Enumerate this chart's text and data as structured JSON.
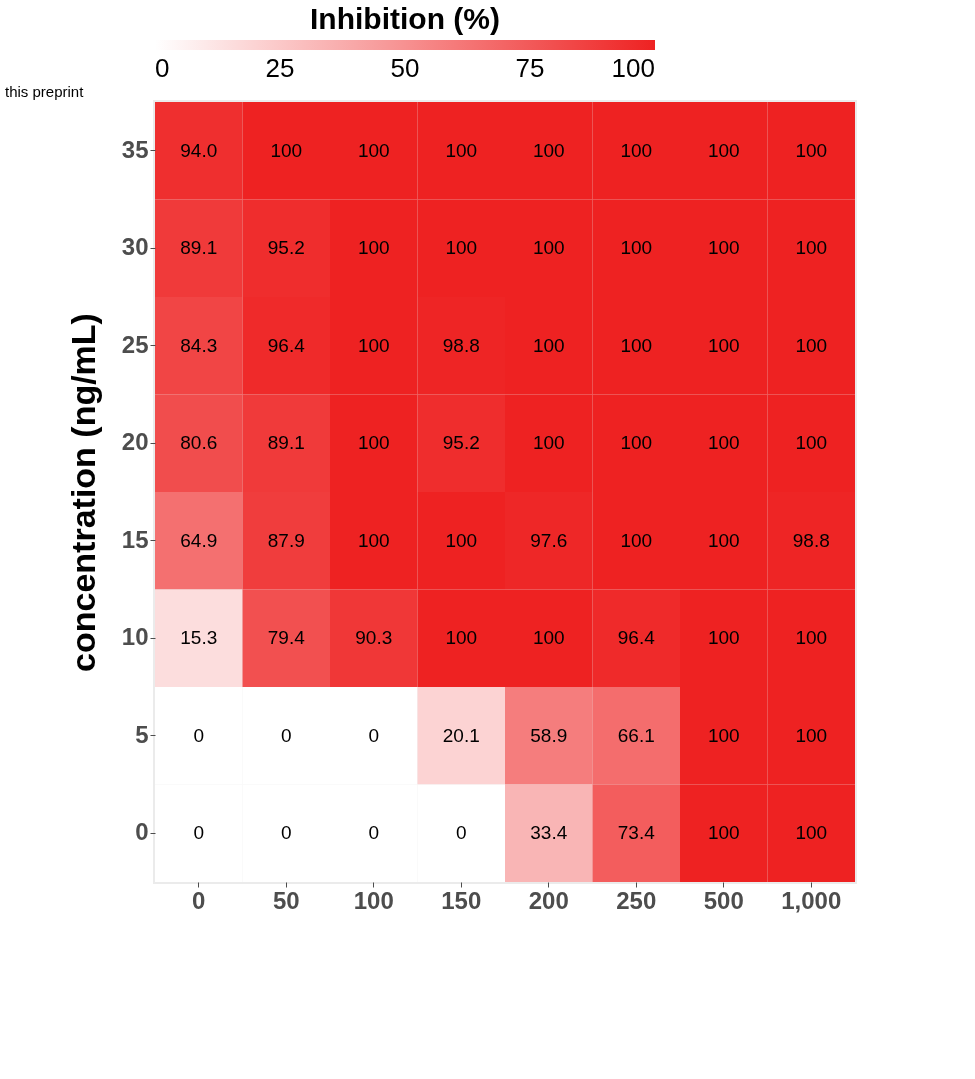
{
  "chart_data": {
    "type": "heatmap",
    "clabel": "Inhibition (%)",
    "ylabel": "concentration (ng/mL)",
    "categories": [
      "0",
      "50",
      "100",
      "150",
      "200",
      "250",
      "500",
      "1,000"
    ],
    "y_categories": [
      "35",
      "30",
      "25",
      "20",
      "15",
      "10",
      "5",
      "0"
    ],
    "cells": [
      [
        94.0,
        100,
        100,
        100,
        100,
        100,
        100,
        100
      ],
      [
        89.1,
        95.2,
        100,
        100,
        100,
        100,
        100,
        100
      ],
      [
        84.3,
        96.4,
        100,
        98.8,
        100,
        100,
        100,
        100
      ],
      [
        80.6,
        89.1,
        100,
        95.2,
        100,
        100,
        100,
        100
      ],
      [
        64.9,
        87.9,
        100,
        100,
        97.6,
        100,
        100,
        98.8
      ],
      [
        15.3,
        79.4,
        90.3,
        100,
        100,
        96.4,
        100,
        100
      ],
      [
        0,
        0,
        0,
        20.1,
        58.9,
        66.1,
        100,
        100
      ],
      [
        0,
        0,
        0,
        0,
        33.4,
        73.4,
        100,
        100
      ]
    ],
    "cell_labels": [
      [
        "94.0",
        "100",
        "100",
        "100",
        "100",
        "100",
        "100",
        "100"
      ],
      [
        "89.1",
        "95.2",
        "100",
        "100",
        "100",
        "100",
        "100",
        "100"
      ],
      [
        "84.3",
        "96.4",
        "100",
        "98.8",
        "100",
        "100",
        "100",
        "100"
      ],
      [
        "80.6",
        "89.1",
        "100",
        "95.2",
        "100",
        "100",
        "100",
        "100"
      ],
      [
        "64.9",
        "87.9",
        "100",
        "100",
        "97.6",
        "100",
        "100",
        "98.8"
      ],
      [
        "15.3",
        "79.4",
        "90.3",
        "100",
        "100",
        "96.4",
        "100",
        "100"
      ],
      [
        "0",
        "0",
        "0",
        "20.1",
        "58.9",
        "66.1",
        "100",
        "100"
      ],
      [
        "0",
        "0",
        "0",
        "0",
        "33.4",
        "73.4",
        "100",
        "100"
      ]
    ],
    "clim": [
      0,
      100
    ],
    "cticks": [
      0,
      25,
      50,
      75,
      100
    ],
    "annotations": [
      "this preprint"
    ]
  }
}
